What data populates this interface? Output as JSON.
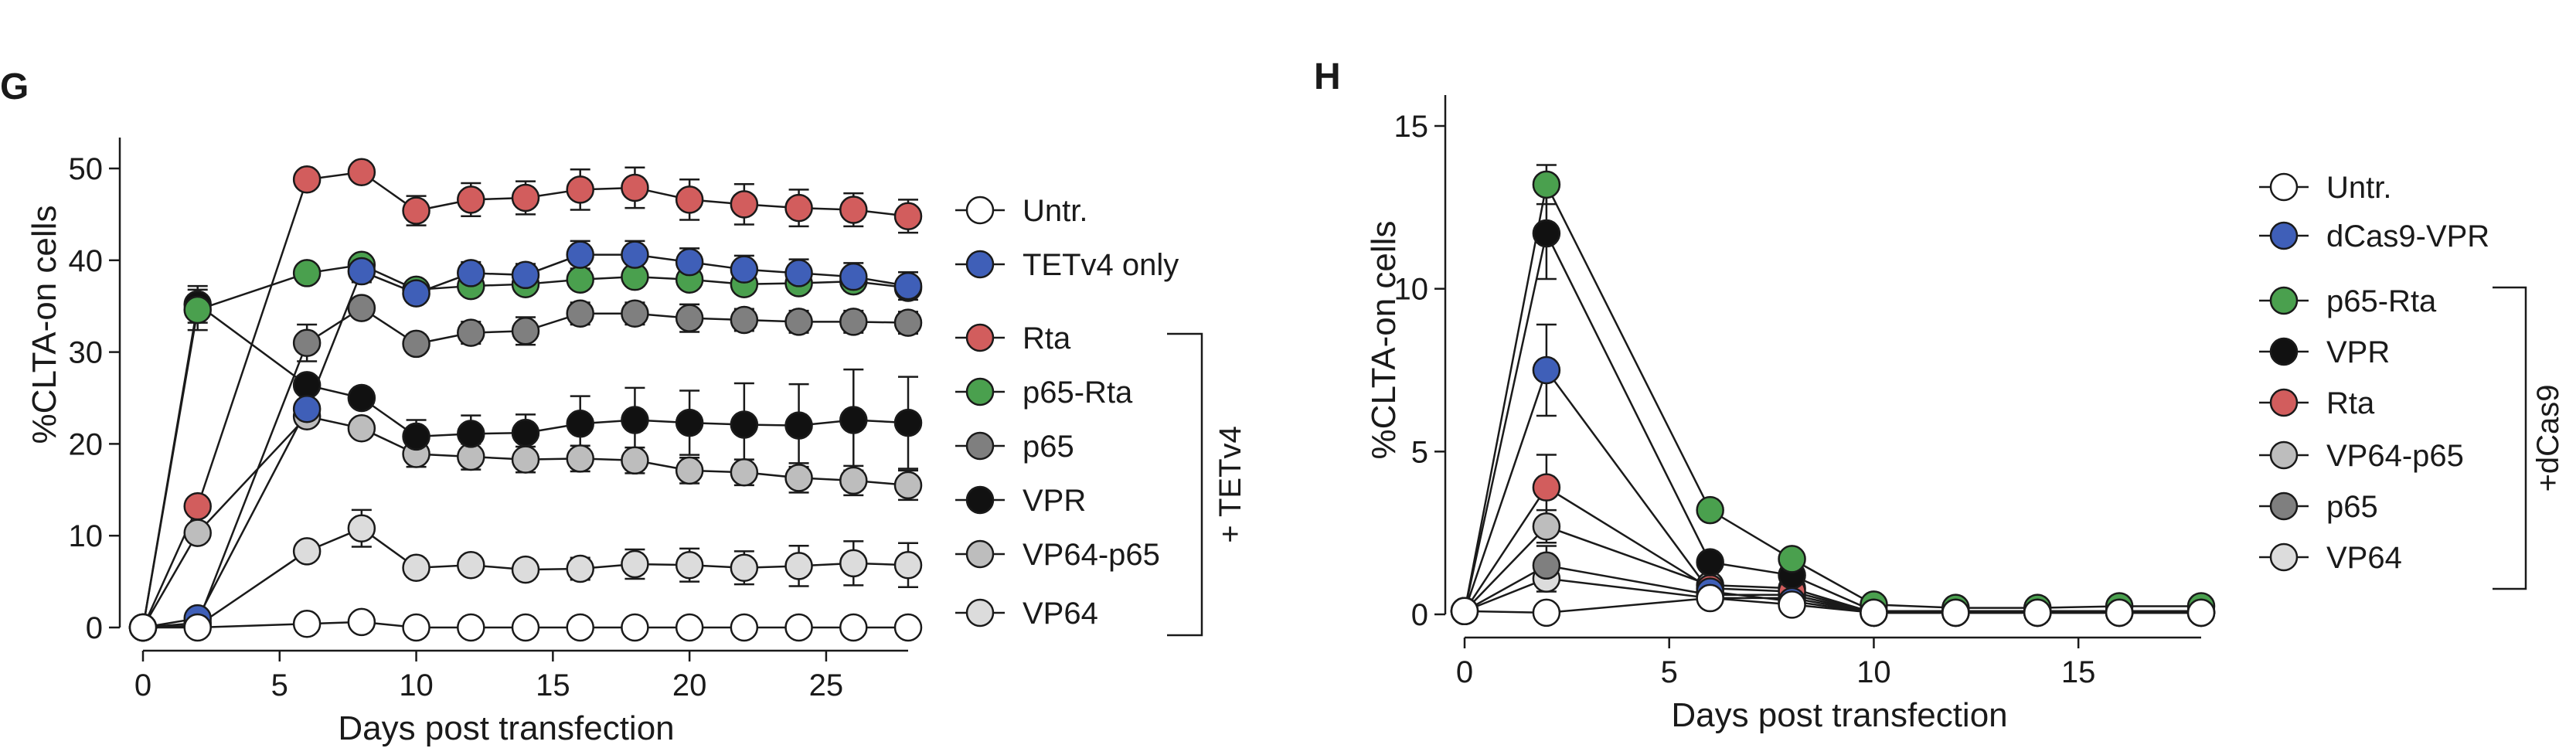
{
  "panels": [
    {
      "letter": "G",
      "xlabel": "Days post transfection",
      "ylabel": "%CLTA-on cells",
      "group_label": "+ TETv4"
    },
    {
      "letter": "H",
      "xlabel": "Days post transfection",
      "ylabel": "%CLTA-on cells",
      "group_label": "+dCas9"
    }
  ],
  "chart_data": [
    {
      "type": "line",
      "panel": "G",
      "xlabel": "Days post transfection",
      "ylabel": "%CLTA-on cells",
      "xlim": [
        0,
        28
      ],
      "ylim": [
        0,
        50
      ],
      "xticks": [
        0,
        5,
        10,
        15,
        20,
        25
      ],
      "yticks": [
        0,
        10,
        20,
        30,
        40,
        50
      ],
      "grid": false,
      "legend_position": "right",
      "error_bars": true,
      "series": [
        {
          "name": "Untr.",
          "color": "#ffffff",
          "x": [
            0,
            2,
            6,
            8,
            10,
            12,
            14,
            16,
            18,
            20,
            22,
            24,
            26,
            28
          ],
          "y": [
            0,
            0,
            0.4,
            0.6,
            0,
            0,
            0,
            0,
            0,
            0,
            0,
            0,
            0,
            0
          ],
          "err": [
            0,
            0,
            0.3,
            0.3,
            0,
            0,
            0,
            0,
            0,
            0,
            0,
            0,
            0,
            0
          ]
        },
        {
          "name": "TETv4 only",
          "color": "#3f5fb8",
          "x": [
            0,
            2,
            6,
            8,
            10,
            12,
            14,
            16,
            18,
            20,
            22,
            24,
            26,
            28
          ],
          "y": [
            0,
            1,
            23.8,
            38.8,
            36.4,
            38.6,
            38.4,
            40.6,
            40.6,
            39.8,
            39.0,
            38.6,
            38.2,
            37.2
          ],
          "err": [
            0,
            0.5,
            1,
            1.2,
            1.0,
            1.2,
            1.2,
            1.5,
            1.5,
            1.5,
            1.5,
            1.5,
            1.5,
            1.5
          ]
        },
        {
          "name": "Rta",
          "color": "#d25d5d",
          "x": [
            0,
            2,
            6,
            8,
            10,
            12,
            14,
            16,
            18,
            20,
            22,
            24,
            26,
            28
          ],
          "y": [
            0,
            13.2,
            48.8,
            49.6,
            45.4,
            46.6,
            46.8,
            47.7,
            47.9,
            46.6,
            46.1,
            45.7,
            45.5,
            44.8
          ],
          "err": [
            0,
            0.5,
            0.5,
            0.5,
            1.6,
            1.8,
            1.8,
            2.2,
            2.2,
            2.2,
            2.2,
            2.0,
            1.8,
            1.8
          ]
        },
        {
          "name": "p65-Rta",
          "color": "#4aa04e",
          "x": [
            0,
            2,
            6,
            8,
            10,
            12,
            14,
            16,
            18,
            20,
            22,
            24,
            26,
            28
          ],
          "y": [
            0,
            34.6,
            38.6,
            39.5,
            36.8,
            37.2,
            37.4,
            37.9,
            38.2,
            37.9,
            37.4,
            37.5,
            37.7,
            37.0
          ],
          "err": [
            0,
            2.2,
            0.5,
            0.6,
            0.8,
            0.8,
            0.8,
            0.8,
            0.8,
            0.8,
            0.8,
            0.8,
            0.8,
            0.8
          ]
        },
        {
          "name": "p65",
          "color": "#7f7f7f",
          "x": [
            0,
            2,
            6,
            8,
            10,
            12,
            14,
            16,
            18,
            20,
            22,
            24,
            26,
            28
          ],
          "y": [
            0,
            0.5,
            31,
            34.8,
            30.9,
            32.1,
            32.3,
            34.2,
            34.2,
            33.7,
            33.5,
            33.3,
            33.3,
            33.2
          ],
          "err": [
            0,
            0.3,
            2.0,
            0.5,
            1.0,
            1.2,
            1.5,
            1.2,
            1.2,
            1.5,
            1.2,
            1.2,
            1.2,
            1.2
          ]
        },
        {
          "name": "VPR",
          "color": "#111111",
          "x": [
            0,
            2,
            6,
            8,
            10,
            12,
            14,
            16,
            18,
            20,
            22,
            24,
            26,
            28
          ],
          "y": [
            0,
            35.2,
            26.4,
            25,
            20.8,
            21.1,
            21.2,
            22.2,
            22.6,
            22.3,
            22.1,
            22.0,
            22.6,
            22.3
          ],
          "err": [
            0,
            2.0,
            0.8,
            0.8,
            1.8,
            2.0,
            2.0,
            3.0,
            3.5,
            3.5,
            4.5,
            4.5,
            5.5,
            5.0
          ]
        },
        {
          "name": "VP64-p65",
          "color": "#bdbdbd",
          "x": [
            0,
            2,
            6,
            8,
            10,
            12,
            14,
            16,
            18,
            20,
            22,
            24,
            26,
            28
          ],
          "y": [
            0,
            10.3,
            23,
            21.7,
            18.9,
            18.6,
            18.3,
            18.4,
            18.2,
            17.1,
            16.9,
            16.3,
            16.0,
            15.5
          ],
          "err": [
            0,
            0.5,
            0.8,
            0.8,
            1.4,
            1.4,
            1.4,
            1.4,
            1.4,
            1.4,
            1.4,
            1.6,
            1.6,
            1.6
          ]
        },
        {
          "name": "VP64",
          "color": "#dcdcdc",
          "x": [
            0,
            2,
            6,
            8,
            10,
            12,
            14,
            16,
            18,
            20,
            22,
            24,
            26,
            28
          ],
          "y": [
            0,
            0.2,
            8.3,
            10.8,
            6.5,
            6.8,
            6.3,
            6.4,
            6.9,
            6.8,
            6.5,
            6.7,
            7.0,
            6.8
          ],
          "err": [
            0,
            0.2,
            0.6,
            2.0,
            1.0,
            1.0,
            1.0,
            1.2,
            1.6,
            1.8,
            1.8,
            2.2,
            2.4,
            2.4
          ]
        }
      ]
    },
    {
      "type": "line",
      "panel": "H",
      "xlabel": "Days post transfection",
      "ylabel": "%CLTA-on cells",
      "xlim": [
        0,
        18
      ],
      "ylim": [
        0,
        15
      ],
      "xticks": [
        0,
        5,
        10,
        15
      ],
      "yticks": [
        0,
        5,
        10,
        15
      ],
      "grid": false,
      "legend_position": "right",
      "error_bars": true,
      "series": [
        {
          "name": "Untr.",
          "color": "#ffffff",
          "x": [
            0,
            2,
            6,
            8,
            10,
            12,
            14,
            16,
            18
          ],
          "y": [
            0.1,
            0.05,
            0.5,
            0.3,
            0.05,
            0.05,
            0.05,
            0.05,
            0.05
          ],
          "err": [
            0,
            0,
            0,
            0,
            0,
            0,
            0,
            0,
            0
          ]
        },
        {
          "name": "dCas9-VPR",
          "color": "#3f5fb8",
          "x": [
            0,
            2,
            6,
            8,
            10,
            12,
            14,
            16,
            18
          ],
          "y": [
            0.1,
            7.5,
            0.7,
            0.4,
            0.05,
            0.05,
            0.05,
            0.05,
            0.05
          ],
          "err": [
            0,
            1.4,
            0.1,
            0.1,
            0,
            0,
            0,
            0,
            0
          ]
        },
        {
          "name": "p65-Rta",
          "color": "#4aa04e",
          "x": [
            0,
            2,
            6,
            8,
            10,
            12,
            14,
            16,
            18
          ],
          "y": [
            0.1,
            13.2,
            3.2,
            1.7,
            0.3,
            0.2,
            0.2,
            0.25,
            0.25
          ],
          "err": [
            0,
            0.6,
            0.1,
            0.1,
            0,
            0,
            0,
            0,
            0
          ]
        },
        {
          "name": "VPR",
          "color": "#111111",
          "x": [
            0,
            2,
            6,
            8,
            10,
            12,
            14,
            16,
            18
          ],
          "y": [
            0.1,
            11.7,
            1.6,
            1.2,
            0.1,
            0.1,
            0.1,
            0.1,
            0.1
          ],
          "err": [
            0,
            1.4,
            0.1,
            0.1,
            0,
            0,
            0,
            0,
            0
          ]
        },
        {
          "name": "Rta",
          "color": "#d25d5d",
          "x": [
            0,
            2,
            6,
            8,
            10,
            12,
            14,
            16,
            18
          ],
          "y": [
            0.1,
            3.9,
            0.8,
            0.7,
            0.05,
            0.05,
            0.05,
            0.05,
            0.05
          ],
          "err": [
            0,
            1.0,
            0.1,
            0.1,
            0,
            0,
            0,
            0,
            0
          ]
        },
        {
          "name": "VP64-p65",
          "color": "#bdbdbd",
          "x": [
            0,
            2,
            6,
            8,
            10,
            12,
            14,
            16,
            18
          ],
          "y": [
            0.1,
            2.7,
            0.9,
            0.8,
            0.05,
            0.05,
            0.05,
            0.05,
            0.05
          ],
          "err": [
            0,
            0.5,
            0.1,
            0.1,
            0,
            0,
            0,
            0,
            0
          ]
        },
        {
          "name": "p65",
          "color": "#7f7f7f",
          "x": [
            0,
            2,
            6,
            8,
            10,
            12,
            14,
            16,
            18
          ],
          "y": [
            0.1,
            1.5,
            0.6,
            0.6,
            0.05,
            0.05,
            0.05,
            0.05,
            0.05
          ],
          "err": [
            0,
            0.6,
            0.1,
            0.1,
            0,
            0,
            0,
            0,
            0
          ]
        },
        {
          "name": "VP64",
          "color": "#dcdcdc",
          "x": [
            0,
            2,
            6,
            8,
            10,
            12,
            14,
            16,
            18
          ],
          "y": [
            0.1,
            1.1,
            0.5,
            0.5,
            0.05,
            0.05,
            0.05,
            0.05,
            0.05
          ],
          "err": [
            0,
            0.4,
            0.1,
            0.1,
            0,
            0,
            0,
            0,
            0
          ]
        }
      ]
    }
  ]
}
